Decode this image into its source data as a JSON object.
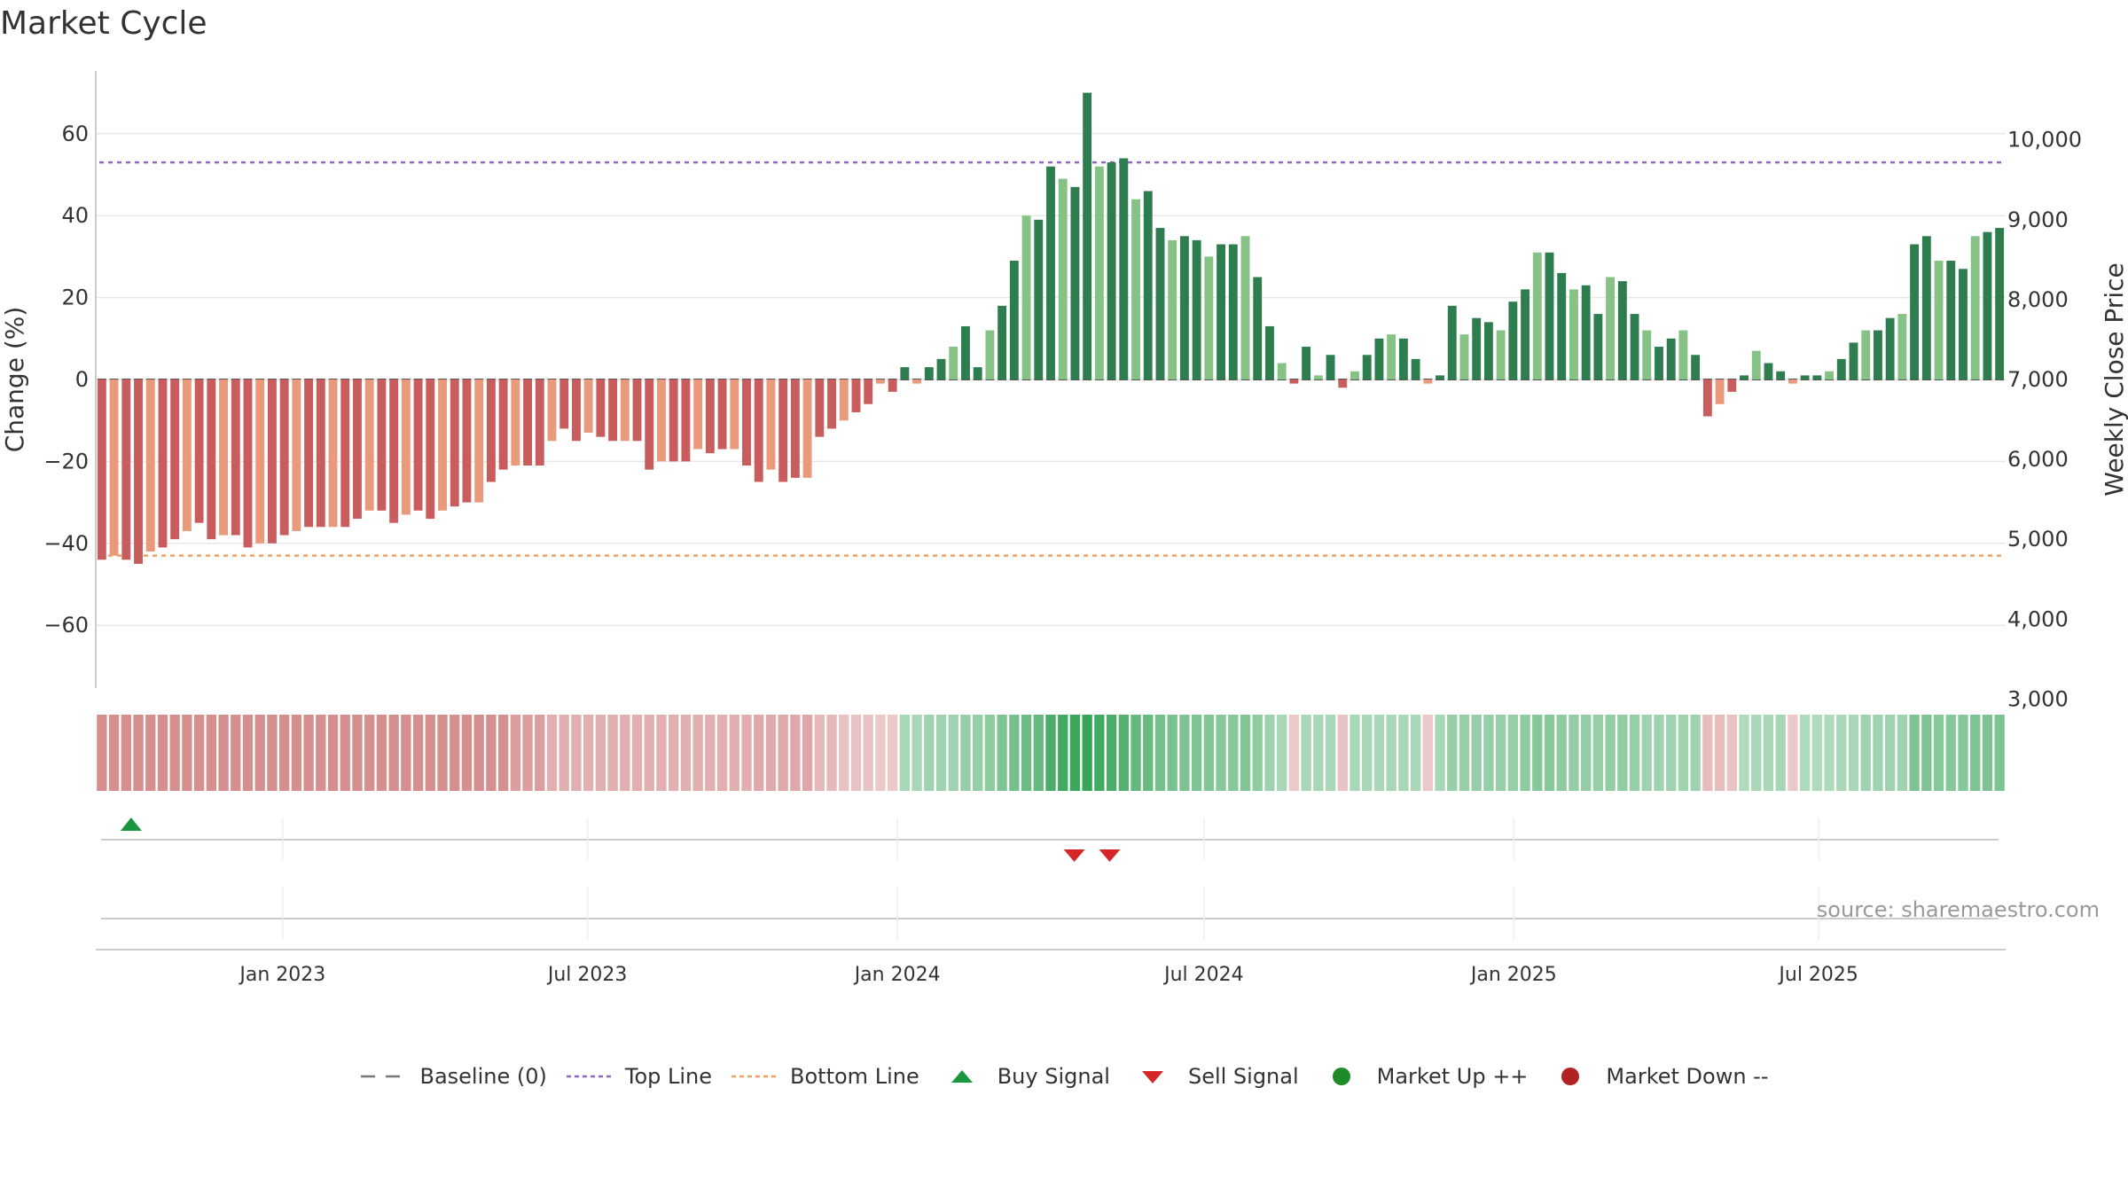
{
  "title": "Market Cycle",
  "chart_data": {
    "type": "bar",
    "title": "Market Cycle",
    "ylabel_left": "Change (%)",
    "ylabel_right": "Weekly Close Price",
    "ylim_left": [
      -76,
      76
    ],
    "ylim_right": [
      3000,
      10700
    ],
    "left_ticks": [
      60,
      40,
      20,
      0,
      -20,
      -40,
      -60
    ],
    "right_ticks": [
      10000,
      9000,
      8000,
      7000,
      6000,
      5000,
      4000,
      3000
    ],
    "left_tick_labels": [
      "60",
      "40",
      "20",
      "0",
      "−20",
      "−40",
      "−60"
    ],
    "right_tick_labels": [
      "10,000",
      "9,000",
      "8,000",
      "7,000",
      "6,000",
      "5,000",
      "4,000",
      "3,000"
    ],
    "x_start": "2022-09-12",
    "x_end": "2025-10-20",
    "x_ticks": [
      "2023-01-01",
      "2023-07-01",
      "2024-01-01",
      "2024-07-01",
      "2025-01-01",
      "2025-07-01"
    ],
    "x_tick_labels": [
      "Jan 2023",
      "Jul 2023",
      "Jan 2024",
      "Jul 2024",
      "Jan 2025",
      "Jul 2025"
    ],
    "top_line": 53,
    "bottom_line": -43,
    "baseline": 0,
    "weekly_change": [
      -44,
      -43,
      -44,
      -45,
      -42,
      -41,
      -39,
      -37,
      -35,
      -39,
      -38,
      -38,
      -41,
      -40,
      -40,
      -38,
      -37,
      -36,
      -36,
      -36,
      -36,
      -34,
      -32,
      -32,
      -35,
      -33,
      -32,
      -34,
      -32,
      -31,
      -30,
      -30,
      -25,
      -22,
      -21,
      -21,
      -21,
      -15,
      -12,
      -15,
      -13,
      -14,
      -15,
      -15,
      -15,
      -22,
      -20,
      -20,
      -20,
      -17,
      -18,
      -17,
      -17,
      -21,
      -25,
      -22,
      -25,
      -24,
      -24,
      -14,
      -12,
      -10,
      -8,
      -6,
      -1,
      -3,
      3,
      -1,
      3,
      5,
      8,
      13,
      3,
      12,
      18,
      29,
      40,
      39,
      52,
      49,
      47,
      70,
      52,
      53,
      54,
      44,
      46,
      37,
      34,
      35,
      34,
      30,
      33,
      33,
      35,
      25,
      13,
      4,
      -1,
      8,
      1,
      6,
      -2,
      2,
      6,
      10,
      11,
      10,
      5,
      -1,
      1,
      18,
      11,
      15,
      14,
      12,
      19,
      22,
      31,
      31,
      26,
      22,
      23,
      16,
      25,
      24,
      16,
      12,
      8,
      10,
      12,
      6,
      -9,
      -6,
      -3,
      1,
      7,
      4,
      2,
      -1,
      1,
      1,
      2,
      5,
      9,
      12,
      12,
      15,
      16,
      33,
      35,
      29,
      29,
      27,
      35,
      36,
      37
    ],
    "cycle_strip": [
      -0.42,
      -0.42,
      -0.42,
      -0.42,
      -0.42,
      -0.42,
      -0.42,
      -0.42,
      -0.42,
      -0.42,
      -0.42,
      -0.42,
      -0.42,
      -0.42,
      -0.42,
      -0.42,
      -0.42,
      -0.42,
      -0.42,
      -0.42,
      -0.42,
      -0.42,
      -0.42,
      -0.42,
      -0.42,
      -0.42,
      -0.42,
      -0.42,
      -0.42,
      -0.42,
      -0.42,
      -0.42,
      -0.42,
      -0.42,
      -0.35,
      -0.35,
      -0.35,
      -0.25,
      -0.25,
      -0.25,
      -0.25,
      -0.25,
      -0.25,
      -0.25,
      -0.25,
      -0.25,
      -0.25,
      -0.25,
      -0.25,
      -0.25,
      -0.25,
      -0.25,
      -0.25,
      -0.25,
      -0.28,
      -0.28,
      -0.28,
      -0.28,
      -0.3,
      -0.2,
      -0.2,
      -0.15,
      -0.15,
      -0.15,
      -0.12,
      -0.12,
      0.25,
      0.25,
      0.3,
      0.3,
      0.3,
      0.35,
      0.35,
      0.4,
      0.5,
      0.55,
      0.6,
      0.65,
      0.8,
      0.85,
      0.88,
      0.95,
      0.85,
      0.8,
      0.75,
      0.65,
      0.62,
      0.55,
      0.52,
      0.5,
      0.5,
      0.48,
      0.45,
      0.45,
      0.48,
      0.4,
      0.3,
      0.25,
      -0.12,
      0.25,
      0.25,
      0.25,
      -0.15,
      0.25,
      0.25,
      0.25,
      0.25,
      0.25,
      0.25,
      -0.12,
      0.25,
      0.35,
      0.35,
      0.35,
      0.35,
      0.35,
      0.35,
      0.4,
      0.45,
      0.45,
      0.4,
      0.38,
      0.38,
      0.35,
      0.38,
      0.38,
      0.35,
      0.3,
      0.3,
      0.3,
      0.3,
      0.3,
      -0.18,
      -0.18,
      -0.15,
      0.2,
      0.25,
      0.25,
      0.25,
      -0.12,
      0.2,
      0.2,
      0.2,
      0.25,
      0.25,
      0.3,
      0.3,
      0.3,
      0.3,
      0.5,
      0.5,
      0.45,
      0.45,
      0.45,
      0.5,
      0.5,
      0.5
    ],
    "buy_signals": [
      "2022-10-03"
    ],
    "sell_signals": [
      "2024-04-15",
      "2024-05-06"
    ],
    "annotation": "source: sharemaestro.com",
    "legend_position": "bottom",
    "grid": true
  },
  "legend": [
    {
      "label": "Baseline (0)",
      "symbol": "dash",
      "color": "#777777"
    },
    {
      "label": "Top Line",
      "symbol": "dotted",
      "color": "#9467bd"
    },
    {
      "label": "Bottom Line",
      "symbol": "dotted",
      "color": "#f0a060"
    },
    {
      "label": "Buy Signal",
      "symbol": "triangle-up",
      "color": "#1a9641"
    },
    {
      "label": "Sell Signal",
      "symbol": "triangle-down",
      "color": "#d62728"
    },
    {
      "label": "Market Up ++",
      "symbol": "circle",
      "color": "#1f8a2a"
    },
    {
      "label": "Market Down --",
      "symbol": "circle",
      "color": "#b22222"
    }
  ],
  "colors": {
    "up_strong": "#2e7d4f",
    "up_weak": "#86c285",
    "down_strong": "#c95c5c",
    "down_weak": "#e89a7a",
    "top_line": "#9467bd",
    "bottom_line": "#f0a060",
    "buy": "#1a9641",
    "sell": "#d62728"
  }
}
